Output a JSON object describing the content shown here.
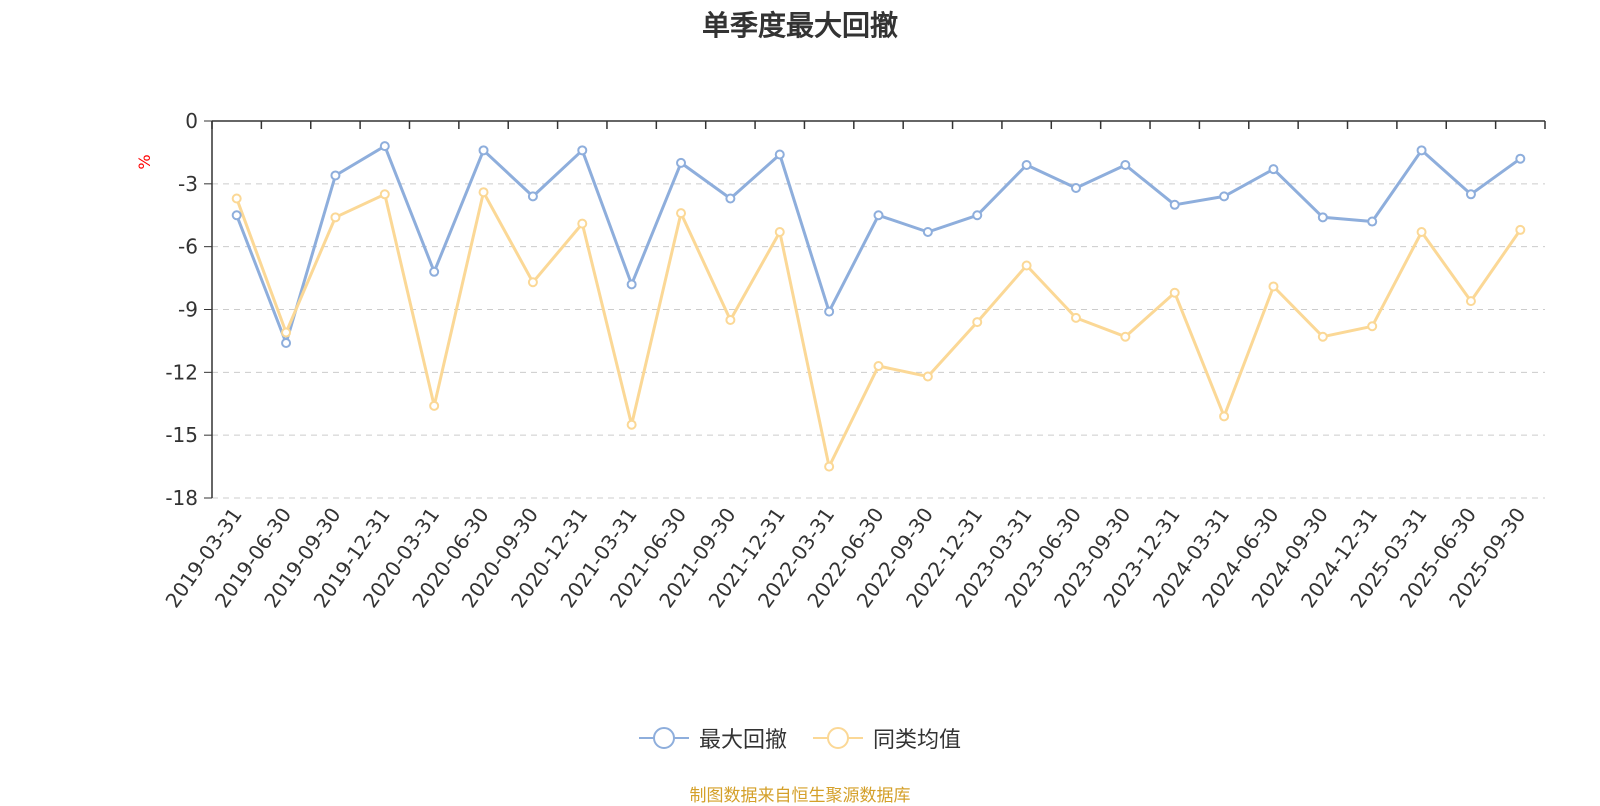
{
  "chart_data": {
    "type": "line",
    "title": "单季度最大回撤",
    "ylabel": "%",
    "ylim": [
      -18,
      0
    ],
    "yticks": [
      "0",
      "-3",
      "-6",
      "-9",
      "-12",
      "-15",
      "-18"
    ],
    "grid": true,
    "legend_position": "bottom-center",
    "categories": [
      "2019-03-31",
      "2019-06-30",
      "2019-09-30",
      "2019-12-31",
      "2020-03-31",
      "2020-06-30",
      "2020-09-30",
      "2020-12-31",
      "2021-03-31",
      "2021-06-30",
      "2021-09-30",
      "2021-12-31",
      "2022-03-31",
      "2022-06-30",
      "2022-09-30",
      "2022-12-31",
      "2023-03-31",
      "2023-06-30",
      "2023-09-30",
      "2023-12-31",
      "2024-03-31",
      "2024-06-30",
      "2024-09-30",
      "2024-12-31",
      "2025-03-31",
      "2025-06-30",
      "2025-09-30"
    ],
    "series": [
      {
        "name": "最大回撤",
        "color": "#8eaedc",
        "values": [
          -4.5,
          -10.6,
          -2.6,
          -1.2,
          -7.2,
          -1.4,
          -3.6,
          -1.4,
          -7.8,
          -2.0,
          -3.7,
          -1.6,
          -9.1,
          -4.5,
          -5.3,
          -4.5,
          -2.1,
          -3.2,
          -2.1,
          -4.0,
          -3.6,
          -2.3,
          -4.6,
          -4.8,
          -1.4,
          -3.5,
          -1.8
        ]
      },
      {
        "name": "同类均值",
        "color": "#fbd896",
        "values": [
          -3.7,
          -10.1,
          -4.6,
          -3.5,
          -13.6,
          -3.4,
          -7.7,
          -4.9,
          -14.5,
          -4.4,
          -9.5,
          -5.3,
          -16.5,
          -11.7,
          -12.2,
          -9.6,
          -6.9,
          -9.4,
          -10.3,
          -8.2,
          -14.1,
          -7.9,
          -10.3,
          -9.8,
          -5.3,
          -8.6,
          -5.2
        ]
      }
    ]
  },
  "legend": {
    "items": [
      "最大回撤",
      "同类均值"
    ]
  },
  "footer": {
    "source_note": "制图数据来自恒生聚源数据库"
  }
}
